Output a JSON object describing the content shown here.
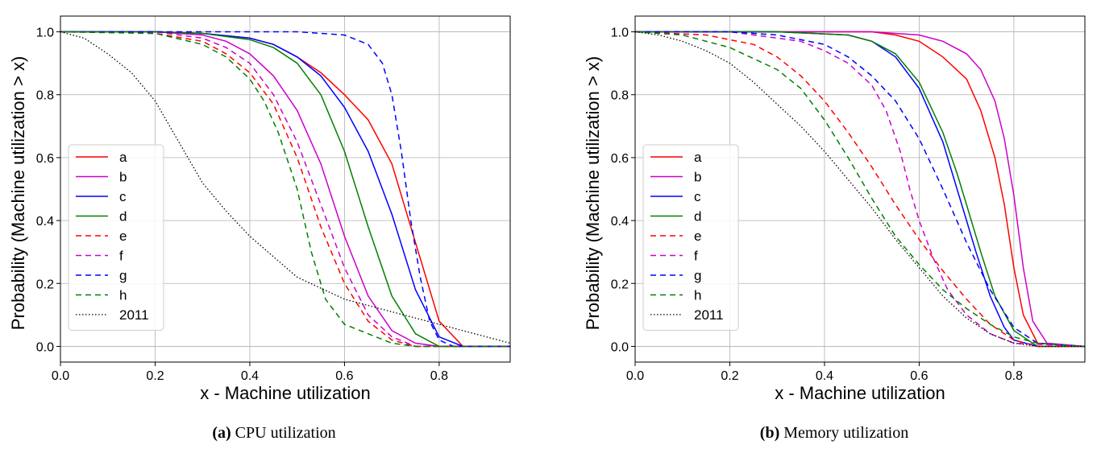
{
  "chart_data": [
    {
      "type": "line",
      "caption_label": "(a)",
      "caption_text": "CPU utilization",
      "xlabel": "x - Machine utilization",
      "ylabel": "Probability (Machine utilization  >  x)",
      "xlim": [
        0.0,
        0.95
      ],
      "ylim": [
        -0.05,
        1.05
      ],
      "x_ticks": [
        "0.0",
        "0.2",
        "0.4",
        "0.6",
        "0.8"
      ],
      "y_ticks": [
        "0.0",
        "0.2",
        "0.4",
        "0.6",
        "0.8",
        "1.0"
      ],
      "grid": true,
      "legend_position": "lower-left",
      "series": [
        {
          "name": "a",
          "color": "#ff0000",
          "style": "solid",
          "x": [
            0,
            0.2,
            0.3,
            0.4,
            0.45,
            0.5,
            0.55,
            0.6,
            0.65,
            0.7,
            0.75,
            0.8,
            0.85,
            0.95
          ],
          "y": [
            1.0,
            1.0,
            0.995,
            0.98,
            0.96,
            0.92,
            0.87,
            0.8,
            0.72,
            0.58,
            0.33,
            0.08,
            0.0,
            0.0
          ]
        },
        {
          "name": "b",
          "color": "#cc00cc",
          "style": "solid",
          "x": [
            0,
            0.2,
            0.3,
            0.35,
            0.4,
            0.45,
            0.5,
            0.55,
            0.6,
            0.65,
            0.7,
            0.75,
            0.8,
            0.95
          ],
          "y": [
            1.0,
            1.0,
            0.99,
            0.97,
            0.93,
            0.86,
            0.75,
            0.58,
            0.35,
            0.16,
            0.05,
            0.01,
            0.0,
            0.0
          ]
        },
        {
          "name": "c",
          "color": "#0000ff",
          "style": "solid",
          "x": [
            0,
            0.2,
            0.3,
            0.4,
            0.45,
            0.5,
            0.55,
            0.6,
            0.65,
            0.7,
            0.75,
            0.8,
            0.85,
            0.95
          ],
          "y": [
            1.0,
            1.0,
            0.995,
            0.98,
            0.96,
            0.92,
            0.86,
            0.76,
            0.62,
            0.42,
            0.18,
            0.03,
            0.0,
            0.0
          ]
        },
        {
          "name": "d",
          "color": "#008000",
          "style": "solid",
          "x": [
            0,
            0.2,
            0.3,
            0.4,
            0.45,
            0.5,
            0.55,
            0.6,
            0.65,
            0.7,
            0.75,
            0.8,
            0.95
          ],
          "y": [
            1.0,
            1.0,
            0.995,
            0.975,
            0.95,
            0.9,
            0.8,
            0.62,
            0.38,
            0.16,
            0.04,
            0.0,
            0.0
          ]
        },
        {
          "name": "e",
          "color": "#ff0000",
          "style": "dashed",
          "x": [
            0,
            0.2,
            0.3,
            0.35,
            0.4,
            0.45,
            0.5,
            0.55,
            0.6,
            0.65,
            0.7,
            0.75,
            0.95
          ],
          "y": [
            1.0,
            0.995,
            0.97,
            0.93,
            0.87,
            0.77,
            0.6,
            0.38,
            0.2,
            0.08,
            0.02,
            0.0,
            0.0
          ]
        },
        {
          "name": "f",
          "color": "#cc00cc",
          "style": "dashed",
          "x": [
            0,
            0.2,
            0.3,
            0.35,
            0.4,
            0.45,
            0.5,
            0.55,
            0.6,
            0.65,
            0.7,
            0.75,
            0.95
          ],
          "y": [
            1.0,
            1.0,
            0.98,
            0.95,
            0.9,
            0.8,
            0.65,
            0.45,
            0.25,
            0.1,
            0.03,
            0.0,
            0.0
          ]
        },
        {
          "name": "g",
          "color": "#0000ff",
          "style": "dashed",
          "x": [
            0,
            0.3,
            0.5,
            0.6,
            0.65,
            0.68,
            0.7,
            0.72,
            0.74,
            0.76,
            0.78,
            0.8,
            0.83,
            0.95
          ],
          "y": [
            1.0,
            1.0,
            1.0,
            0.99,
            0.96,
            0.9,
            0.8,
            0.62,
            0.4,
            0.22,
            0.08,
            0.02,
            0.0,
            0.0
          ]
        },
        {
          "name": "h",
          "color": "#008000",
          "style": "dashed",
          "x": [
            0,
            0.2,
            0.3,
            0.35,
            0.4,
            0.43,
            0.46,
            0.5,
            0.53,
            0.56,
            0.6,
            0.65,
            0.7,
            0.75,
            0.95
          ],
          "y": [
            1.0,
            0.995,
            0.96,
            0.92,
            0.85,
            0.78,
            0.68,
            0.5,
            0.3,
            0.15,
            0.07,
            0.04,
            0.01,
            0.0,
            0.0
          ]
        },
        {
          "name": "2011",
          "color": "#000000",
          "style": "dotted",
          "x": [
            0,
            0.05,
            0.1,
            0.15,
            0.2,
            0.25,
            0.3,
            0.35,
            0.4,
            0.5,
            0.6,
            0.7,
            0.8,
            0.9,
            0.95
          ],
          "y": [
            1.0,
            0.98,
            0.93,
            0.87,
            0.78,
            0.65,
            0.52,
            0.43,
            0.35,
            0.22,
            0.15,
            0.11,
            0.07,
            0.03,
            0.01
          ]
        }
      ]
    },
    {
      "type": "line",
      "caption_label": "(b)",
      "caption_text": "Memory utilization",
      "xlabel": "x - Machine utilization",
      "ylabel": "Probability (Machine utilization  >  x)",
      "xlim": [
        0.0,
        0.95
      ],
      "ylim": [
        -0.05,
        1.05
      ],
      "x_ticks": [
        "0.0",
        "0.2",
        "0.4",
        "0.6",
        "0.8"
      ],
      "y_ticks": [
        "0.0",
        "0.2",
        "0.4",
        "0.6",
        "0.8",
        "1.0"
      ],
      "grid": true,
      "legend_position": "lower-left",
      "series": [
        {
          "name": "a",
          "color": "#ff0000",
          "style": "solid",
          "x": [
            0,
            0.3,
            0.5,
            0.55,
            0.6,
            0.65,
            0.7,
            0.73,
            0.76,
            0.78,
            0.8,
            0.82,
            0.85,
            0.95
          ],
          "y": [
            1.0,
            1.0,
            1.0,
            0.99,
            0.97,
            0.92,
            0.85,
            0.75,
            0.6,
            0.45,
            0.25,
            0.1,
            0.01,
            0.0
          ]
        },
        {
          "name": "b",
          "color": "#cc00cc",
          "style": "solid",
          "x": [
            0,
            0.3,
            0.5,
            0.6,
            0.65,
            0.7,
            0.73,
            0.76,
            0.78,
            0.8,
            0.82,
            0.84,
            0.87,
            0.95
          ],
          "y": [
            1.0,
            1.0,
            1.0,
            0.99,
            0.97,
            0.93,
            0.88,
            0.78,
            0.66,
            0.48,
            0.25,
            0.08,
            0.01,
            0.0
          ]
        },
        {
          "name": "c",
          "color": "#0000ff",
          "style": "solid",
          "x": [
            0,
            0.3,
            0.45,
            0.5,
            0.55,
            0.6,
            0.65,
            0.68,
            0.7,
            0.72,
            0.75,
            0.78,
            0.8,
            0.85,
            0.95
          ],
          "y": [
            1.0,
            1.0,
            0.99,
            0.97,
            0.92,
            0.82,
            0.65,
            0.5,
            0.4,
            0.3,
            0.16,
            0.06,
            0.02,
            0.0,
            0.0
          ]
        },
        {
          "name": "d",
          "color": "#008000",
          "style": "solid",
          "x": [
            0,
            0.3,
            0.45,
            0.5,
            0.55,
            0.6,
            0.65,
            0.68,
            0.7,
            0.73,
            0.76,
            0.8,
            0.85,
            0.95
          ],
          "y": [
            1.0,
            1.0,
            0.99,
            0.97,
            0.93,
            0.84,
            0.68,
            0.55,
            0.45,
            0.3,
            0.16,
            0.05,
            0.0,
            0.0
          ]
        },
        {
          "name": "e",
          "color": "#ff0000",
          "style": "dashed",
          "x": [
            0,
            0.15,
            0.25,
            0.3,
            0.35,
            0.4,
            0.45,
            0.5,
            0.55,
            0.6,
            0.65,
            0.7,
            0.75,
            0.8,
            0.85,
            0.95
          ],
          "y": [
            1.0,
            0.99,
            0.96,
            0.92,
            0.86,
            0.78,
            0.68,
            0.57,
            0.45,
            0.34,
            0.24,
            0.15,
            0.07,
            0.02,
            0.0,
            0.0
          ]
        },
        {
          "name": "f",
          "color": "#cc00cc",
          "style": "dashed",
          "x": [
            0,
            0.2,
            0.35,
            0.4,
            0.45,
            0.5,
            0.53,
            0.56,
            0.58,
            0.6,
            0.63,
            0.66,
            0.7,
            0.75,
            0.8,
            0.95
          ],
          "y": [
            1.0,
            1.0,
            0.97,
            0.94,
            0.9,
            0.83,
            0.75,
            0.62,
            0.5,
            0.4,
            0.28,
            0.18,
            0.1,
            0.04,
            0.01,
            0.0
          ]
        },
        {
          "name": "g",
          "color": "#0000ff",
          "style": "dashed",
          "x": [
            0,
            0.2,
            0.3,
            0.4,
            0.45,
            0.5,
            0.55,
            0.6,
            0.65,
            0.7,
            0.75,
            0.8,
            0.85,
            0.95
          ],
          "y": [
            1.0,
            1.0,
            0.99,
            0.96,
            0.92,
            0.86,
            0.78,
            0.66,
            0.5,
            0.33,
            0.18,
            0.06,
            0.01,
            0.0
          ]
        },
        {
          "name": "h",
          "color": "#008000",
          "style": "dashed",
          "x": [
            0,
            0.1,
            0.2,
            0.3,
            0.35,
            0.4,
            0.45,
            0.5,
            0.55,
            0.6,
            0.65,
            0.7,
            0.75,
            0.8,
            0.85,
            0.95
          ],
          "y": [
            1.0,
            0.99,
            0.95,
            0.88,
            0.82,
            0.72,
            0.6,
            0.47,
            0.35,
            0.26,
            0.18,
            0.12,
            0.07,
            0.03,
            0.01,
            0.0
          ]
        },
        {
          "name": "2011",
          "color": "#000000",
          "style": "dotted",
          "x": [
            0,
            0.05,
            0.1,
            0.15,
            0.2,
            0.25,
            0.3,
            0.35,
            0.4,
            0.45,
            0.5,
            0.55,
            0.6,
            0.65,
            0.7,
            0.75,
            0.8,
            0.85,
            0.95
          ],
          "y": [
            1.0,
            0.99,
            0.97,
            0.94,
            0.9,
            0.84,
            0.77,
            0.7,
            0.62,
            0.53,
            0.44,
            0.34,
            0.25,
            0.16,
            0.09,
            0.04,
            0.01,
            0.0,
            0.0
          ]
        }
      ]
    }
  ]
}
